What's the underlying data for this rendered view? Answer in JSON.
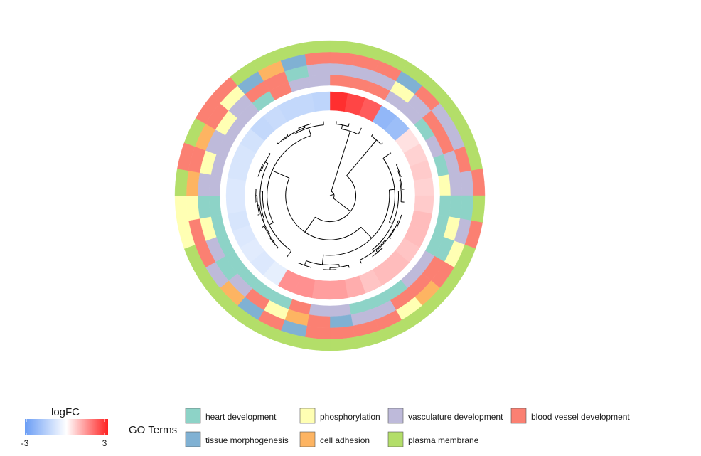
{
  "colors": {
    "heart development": "#8DD3C7",
    "phosphorylation": "#FFFFB3",
    "vasculature development": "#BEBADA",
    "blood vessel development": "#FB8072",
    "tissue morphogenesis": "#80B1D3",
    "cell adhesion": "#FDB462",
    "plasma membrane": "#B3DE69",
    "logfc_low": "#6A9DF5",
    "logfc_mid": "#FFFFFF",
    "logfc_high": "#FF2020"
  },
  "chart_data": {
    "type": "circular dendrogram heatmap",
    "title": "",
    "logFC_legend": {
      "title": "logFC",
      "min": -3,
      "max": 3,
      "min_label": "-3",
      "max_label": "3"
    },
    "go_legend": {
      "title": "GO Terms",
      "terms": [
        "heart development",
        "phosphorylation",
        "vasculature development",
        "blood vessel development",
        "tissue morphogenesis",
        "cell adhesion",
        "plasma membrane"
      ]
    },
    "genes": [
      {
        "logFC": 2.8,
        "terms": [
          "blood vessel development",
          "vasculature development",
          "blood vessel development",
          "plasma membrane"
        ]
      },
      {
        "logFC": 2.5,
        "terms": [
          "blood vessel development",
          "vasculature development",
          "blood vessel development",
          "plasma membrane"
        ]
      },
      {
        "logFC": 2.2,
        "terms": [
          "blood vessel development",
          "vasculature development",
          "blood vessel development",
          "plasma membrane"
        ]
      },
      {
        "logFC": -2.2,
        "terms": [
          "vasculature development",
          "phosphorylation",
          "tissue morphogenesis",
          "plasma membrane"
        ]
      },
      {
        "logFC": -2.0,
        "terms": [
          "vasculature development",
          "vasculature development",
          "blood vessel development",
          "plasma membrane"
        ]
      },
      {
        "logFC": 0.4,
        "terms": [
          "heart development",
          "blood vessel development",
          "vasculature development",
          "plasma membrane"
        ]
      },
      {
        "logFC": 0.6,
        "terms": [
          "vasculature development",
          "blood vessel development",
          "vasculature development",
          "plasma membrane"
        ]
      },
      {
        "logFC": 0.7,
        "terms": [
          "heart development",
          "vasculature development",
          "blood vessel development",
          "plasma membrane"
        ]
      },
      {
        "logFC": 0.6,
        "terms": [
          "phosphorylation",
          "vasculature development",
          "vasculature development",
          "blood vessel development"
        ]
      },
      {
        "logFC": 0.7,
        "terms": [
          "heart development",
          "heart development",
          "heart development",
          "plasma membrane"
        ]
      },
      {
        "logFC": 0.9,
        "terms": [
          "heart development",
          "phosphorylation",
          "vasculature development",
          "blood vessel development"
        ]
      },
      {
        "logFC": 0.9,
        "terms": [
          "heart development",
          "heart development",
          "phosphorylation",
          "plasma membrane"
        ]
      },
      {
        "logFC": 0.8,
        "terms": [
          "vasculature development",
          "blood vessel development",
          "blood vessel development",
          "plasma membrane"
        ]
      },
      {
        "logFC": 0.9,
        "terms": [
          "vasculature development",
          "blood vessel development",
          "cell adhesion",
          "plasma membrane"
        ]
      },
      {
        "logFC": 0.9,
        "terms": [
          "heart development",
          "blood vessel development",
          "phosphorylation",
          "plasma membrane"
        ]
      },
      {
        "logFC": 0.8,
        "terms": [
          "heart development",
          "vasculature development",
          "blood vessel development",
          "plasma membrane"
        ]
      },
      {
        "logFC": 1.1,
        "terms": [
          "heart development",
          "vasculature development",
          "blood vessel development",
          "plasma membrane"
        ]
      },
      {
        "logFC": 1.3,
        "terms": [
          "vasculature development",
          "tissue morphogenesis",
          "blood vessel development",
          "plasma membrane"
        ]
      },
      {
        "logFC": 1.3,
        "terms": [
          "vasculature development",
          "blood vessel development",
          "blood vessel development",
          "plasma membrane"
        ]
      },
      {
        "logFC": 1.5,
        "terms": [
          "blood vessel development",
          "cell adhesion",
          "tissue morphogenesis",
          "plasma membrane"
        ]
      },
      {
        "logFC": 1.5,
        "terms": [
          "heart development",
          "phosphorylation",
          "blood vessel development",
          "plasma membrane"
        ]
      },
      {
        "logFC": -0.5,
        "terms": [
          "heart development",
          "blood vessel development",
          "tissue morphogenesis",
          "plasma membrane"
        ]
      },
      {
        "logFC": -0.7,
        "terms": [
          "heart development",
          "vasculature development",
          "cell adhesion",
          "plasma membrane"
        ]
      },
      {
        "logFC": -0.6,
        "terms": [
          "heart development",
          "heart development",
          "vasculature development",
          "plasma membrane"
        ]
      },
      {
        "logFC": -0.7,
        "terms": [
          "heart development",
          "vasculature development",
          "blood vessel development",
          "plasma membrane"
        ]
      },
      {
        "logFC": -0.8,
        "terms": [
          "heart development",
          "phosphorylation",
          "blood vessel development",
          "phosphorylation"
        ]
      },
      {
        "logFC": -0.7,
        "terms": [
          "heart development",
          "heart development",
          "phosphorylation",
          "phosphorylation"
        ]
      },
      {
        "logFC": -0.7,
        "terms": [
          "vasculature development",
          "vasculature development",
          "cell adhesion",
          "plasma membrane"
        ]
      },
      {
        "logFC": -0.8,
        "terms": [
          "vasculature development",
          "phosphorylation",
          "blood vessel development",
          "blood vessel development"
        ]
      },
      {
        "logFC": -0.8,
        "terms": [
          "vasculature development",
          "vasculature development",
          "cell adhesion",
          "plasma membrane"
        ]
      },
      {
        "logFC": -0.9,
        "terms": [
          "vasculature development",
          "phosphorylation",
          "blood vessel development",
          "blood vessel development"
        ]
      },
      {
        "logFC": -1.2,
        "terms": [
          "vasculature development",
          "vasculature development",
          "phosphorylation",
          "blood vessel development"
        ]
      },
      {
        "logFC": -1.1,
        "terms": [
          "heart development",
          "blood vessel development",
          "tissue morphogenesis",
          "plasma membrane"
        ]
      },
      {
        "logFC": -1.2,
        "terms": [
          "blood vessel development",
          "blood vessel development",
          "cell adhesion",
          "plasma membrane"
        ]
      },
      {
        "logFC": -1.2,
        "terms": [
          "vasculature development",
          "heart development",
          "tissue morphogenesis",
          "plasma membrane"
        ]
      },
      {
        "logFC": -1.3,
        "terms": [
          "vasculature development",
          "vasculature development",
          "blood vessel development",
          "plasma membrane"
        ]
      }
    ]
  }
}
